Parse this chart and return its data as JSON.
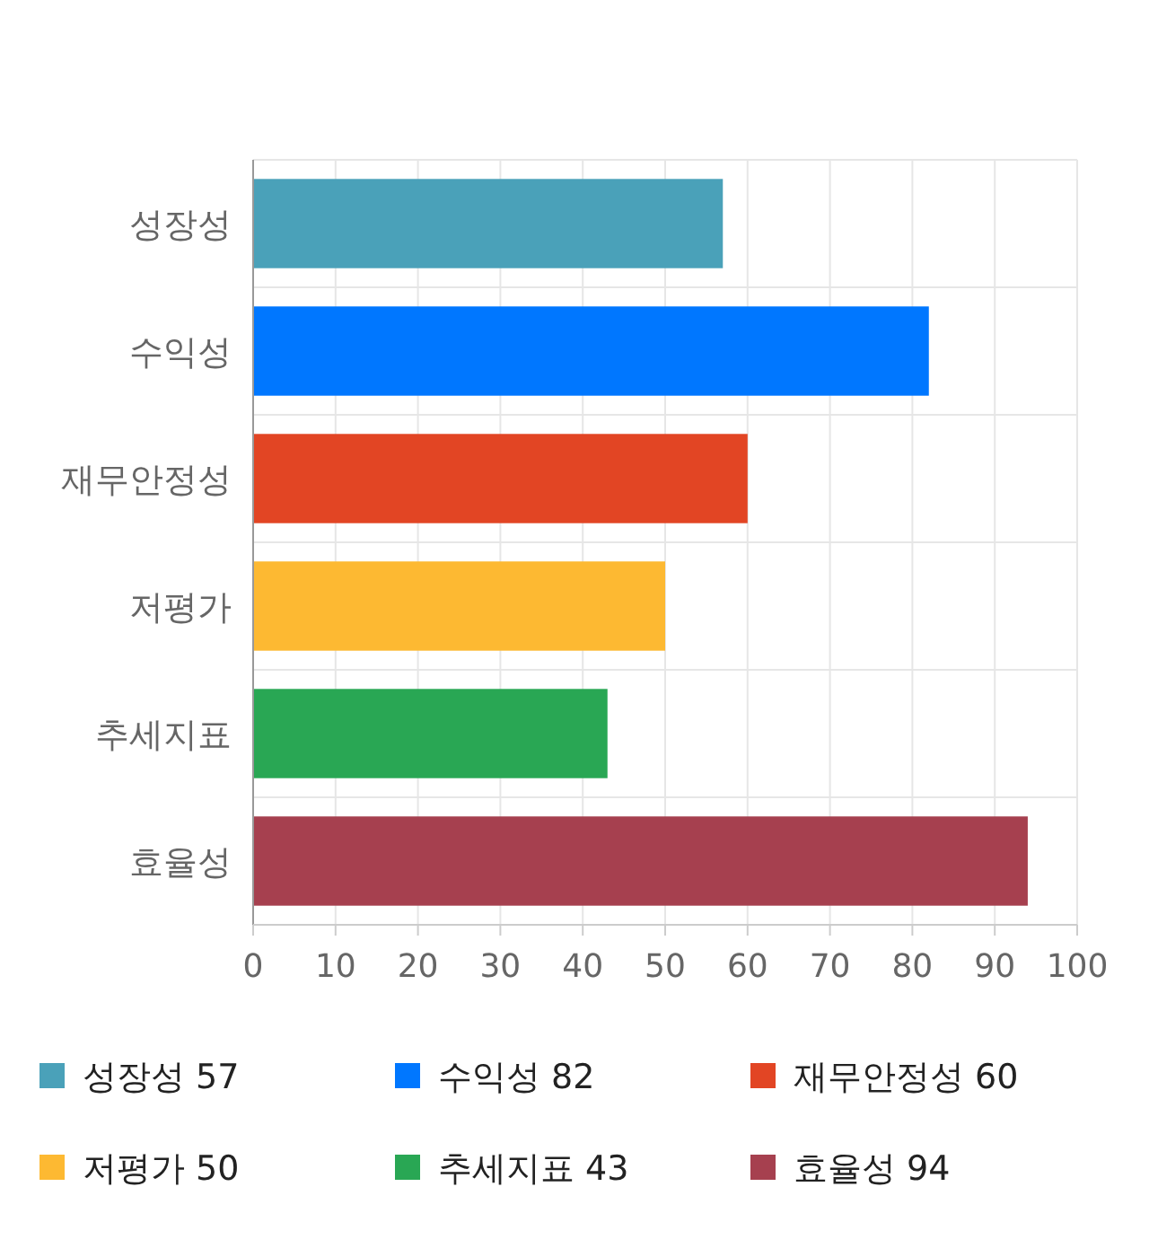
{
  "chart_data": {
    "type": "bar",
    "orientation": "horizontal",
    "categories": [
      "성장성",
      "수익성",
      "재무안정성",
      "저평가",
      "추세지표",
      "효율성"
    ],
    "series": [
      {
        "name": "성장성 57",
        "color": "#4aa1b9",
        "values": [
          57,
          null,
          null,
          null,
          null,
          null
        ]
      },
      {
        "name": "수익성 82",
        "color": "#0077ff",
        "values": [
          null,
          82,
          null,
          null,
          null,
          null
        ]
      },
      {
        "name": "재무안정성 60",
        "color": "#e24524",
        "values": [
          null,
          null,
          60,
          null,
          null,
          null
        ]
      },
      {
        "name": "저평가 50",
        "color": "#fdb932",
        "values": [
          null,
          null,
          null,
          50,
          null,
          null
        ]
      },
      {
        "name": "추세지표 43",
        "color": "#29a754",
        "values": [
          null,
          null,
          null,
          null,
          43,
          null
        ]
      },
      {
        "name": "효율성 94",
        "color": "#a6404f",
        "values": [
          null,
          null,
          null,
          null,
          null,
          94
        ]
      }
    ],
    "xlim": [
      0,
      100
    ],
    "xticks": [
      0,
      10,
      20,
      30,
      40,
      50,
      60,
      70,
      80,
      90,
      100
    ],
    "grid": true,
    "legend": "bottom"
  }
}
